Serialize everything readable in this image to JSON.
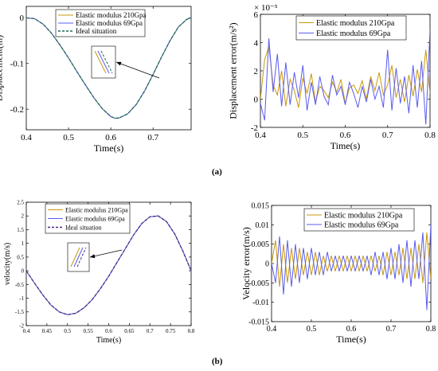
{
  "figure": {
    "caption_a": "(a)",
    "caption_b": "(b)"
  },
  "colors": {
    "e210": "#c8980a",
    "e69": "#5a5cf0",
    "ideal": "#1f6b55",
    "ideal_b": "#4a2a8a",
    "axis": "#000000"
  },
  "chart_data": [
    {
      "id": "a_left",
      "type": "line",
      "title": "",
      "xlabel": "Time(s)",
      "ylabel": "Displacement(m)",
      "xlim": [
        0.4,
        0.79
      ],
      "ylim": [
        -0.245,
        0.025
      ],
      "xticks": [
        0.4,
        0.5,
        0.6,
        0.7
      ],
      "xtick_labels": [
        "0.4",
        "0.5",
        "0.6",
        "0.7"
      ],
      "yticks": [
        0,
        -0.1,
        -0.2
      ],
      "ytick_labels": [
        "0",
        "-0.1",
        "-0.2"
      ],
      "legend_position": "top-left",
      "inset": "zoomed view of the three curves with an arrow pointing to the descending slope",
      "series": [
        {
          "name": "Elastic modulus 210Gpa",
          "color": "#c8980a",
          "style": "solid",
          "x": [
            0.4,
            0.42,
            0.44,
            0.46,
            0.48,
            0.5,
            0.52,
            0.54,
            0.56,
            0.58,
            0.6,
            0.61,
            0.62,
            0.64,
            0.66,
            0.68,
            0.7,
            0.72,
            0.74,
            0.76,
            0.78,
            0.79
          ],
          "values": [
            0,
            -0.002,
            -0.014,
            -0.034,
            -0.06,
            -0.088,
            -0.118,
            -0.147,
            -0.175,
            -0.199,
            -0.216,
            -0.22,
            -0.219,
            -0.21,
            -0.19,
            -0.16,
            -0.124,
            -0.086,
            -0.05,
            -0.02,
            -0.003,
            0
          ]
        },
        {
          "name": "Elastic modulus 69Gpa",
          "color": "#5a5cf0",
          "style": "solid",
          "x": [
            0.4,
            0.42,
            0.44,
            0.46,
            0.48,
            0.5,
            0.52,
            0.54,
            0.56,
            0.58,
            0.6,
            0.61,
            0.62,
            0.64,
            0.66,
            0.68,
            0.7,
            0.72,
            0.74,
            0.76,
            0.78,
            0.79
          ],
          "values": [
            0,
            -0.002,
            -0.014,
            -0.034,
            -0.06,
            -0.088,
            -0.118,
            -0.147,
            -0.175,
            -0.199,
            -0.216,
            -0.22,
            -0.219,
            -0.21,
            -0.19,
            -0.16,
            -0.124,
            -0.086,
            -0.05,
            -0.02,
            -0.003,
            0
          ]
        },
        {
          "name": "Ideal situation",
          "color": "#1f6b55",
          "style": "dashed",
          "x": [
            0.4,
            0.42,
            0.44,
            0.46,
            0.48,
            0.5,
            0.52,
            0.54,
            0.56,
            0.58,
            0.6,
            0.61,
            0.62,
            0.64,
            0.66,
            0.68,
            0.7,
            0.72,
            0.74,
            0.76,
            0.78,
            0.79
          ],
          "values": [
            0,
            -0.002,
            -0.014,
            -0.034,
            -0.06,
            -0.088,
            -0.118,
            -0.147,
            -0.175,
            -0.199,
            -0.216,
            -0.22,
            -0.219,
            -0.21,
            -0.19,
            -0.16,
            -0.124,
            -0.086,
            -0.05,
            -0.02,
            -0.003,
            0
          ]
        }
      ]
    },
    {
      "id": "a_right",
      "type": "line",
      "title": "",
      "xlabel": "Time(s)",
      "ylabel": "Displacement error(m/s²)",
      "exponent_label": "× 10⁻⁵",
      "xlim": [
        0.4,
        0.8
      ],
      "ylim": [
        -2,
        6
      ],
      "xticks": [
        0.4,
        0.5,
        0.6,
        0.7,
        0.8
      ],
      "xtick_labels": [
        "0.4",
        "0.5",
        "0.6",
        "0.7",
        "0.8"
      ],
      "yticks": [
        -2,
        0,
        2,
        4,
        6
      ],
      "ytick_labels": [
        "-2",
        "0",
        "2",
        "4",
        "6"
      ],
      "legend_position": "top-center",
      "series": [
        {
          "name": "Elastic modulus 210Gpa",
          "color": "#c8980a",
          "style": "solid",
          "x": [
            0.4,
            0.41,
            0.42,
            0.43,
            0.44,
            0.45,
            0.46,
            0.47,
            0.48,
            0.49,
            0.5,
            0.51,
            0.52,
            0.53,
            0.54,
            0.55,
            0.56,
            0.57,
            0.58,
            0.59,
            0.6,
            0.61,
            0.62,
            0.63,
            0.64,
            0.65,
            0.66,
            0.67,
            0.68,
            0.69,
            0.7,
            0.71,
            0.72,
            0.73,
            0.74,
            0.75,
            0.76,
            0.77,
            0.78,
            0.79,
            0.8
          ],
          "values": [
            0,
            2.8,
            3.7,
            1.0,
            0.3,
            2.0,
            -0.5,
            1.4,
            0.6,
            -0.6,
            1.5,
            0.4,
            1.8,
            -0.2,
            0.9,
            0.6,
            0.1,
            1.2,
            0.5,
            1.4,
            -0.3,
            0.8,
            1.0,
            0.4,
            1.3,
            0.0,
            1.6,
            0.6,
            1.9,
            0.3,
            1.0,
            2.4,
            0.1,
            1.4,
            -0.2,
            1.7,
            0.2,
            2.1,
            0.5,
            3.5,
            0.4
          ]
        },
        {
          "name": "Elastic modulus 69Gpa",
          "color": "#5a5cf0",
          "style": "solid",
          "x": [
            0.4,
            0.41,
            0.42,
            0.43,
            0.44,
            0.45,
            0.46,
            0.47,
            0.48,
            0.49,
            0.5,
            0.51,
            0.52,
            0.53,
            0.54,
            0.55,
            0.56,
            0.57,
            0.58,
            0.59,
            0.6,
            0.61,
            0.62,
            0.63,
            0.64,
            0.65,
            0.66,
            0.67,
            0.68,
            0.69,
            0.7,
            0.71,
            0.72,
            0.73,
            0.74,
            0.75,
            0.76,
            0.77,
            0.78,
            0.79,
            0.8
          ],
          "values": [
            -0.3,
            -1.5,
            4.3,
            0.5,
            3.2,
            -0.5,
            2.6,
            -0.4,
            1.9,
            0.1,
            2.4,
            -0.8,
            1.2,
            -0.4,
            1.6,
            0.2,
            -0.4,
            1.7,
            0.3,
            0.9,
            -0.4,
            1.2,
            0.4,
            -0.6,
            0.9,
            -0.2,
            1.4,
            0.0,
            0.9,
            -0.6,
            3.5,
            -0.8,
            2.2,
            -0.3,
            1.6,
            -1.0,
            2.4,
            -0.6,
            2.7,
            -1.8,
            4.9
          ]
        }
      ]
    },
    {
      "id": "b_left",
      "type": "line",
      "title": "",
      "xlabel": "Time(s)",
      "ylabel": "velocity(m/s)",
      "xlim": [
        0.4,
        0.8
      ],
      "ylim": [
        -2,
        2.5
      ],
      "xticks": [
        0.4,
        0.45,
        0.5,
        0.55,
        0.6,
        0.65,
        0.7,
        0.75,
        0.8
      ],
      "xtick_labels": [
        "0.4",
        "0.45",
        "0.5",
        "0.55",
        "0.6",
        "0.65",
        "0.7",
        "0.75",
        "0.8"
      ],
      "yticks": [
        -2,
        -1.5,
        -1,
        -0.5,
        0,
        0.5,
        1,
        1.5,
        2,
        2.5
      ],
      "ytick_labels": [
        "-2",
        "-1.5",
        "-1",
        "-0.5",
        "0",
        "0.5",
        "1",
        "1.5",
        "2",
        "2.5"
      ],
      "legend_position": "top-center",
      "inset": "zoomed view of the three curves with an arrow pointing to the ascending slope",
      "series": [
        {
          "name": "Elastic modulus 210Gpa",
          "color": "#c8980a",
          "style": "solid",
          "x": [
            0.4,
            0.42,
            0.44,
            0.46,
            0.48,
            0.5,
            0.52,
            0.54,
            0.56,
            0.58,
            0.6,
            0.62,
            0.64,
            0.66,
            0.68,
            0.7,
            0.72,
            0.74,
            0.76,
            0.78,
            0.8
          ],
          "values": [
            0,
            -0.45,
            -0.88,
            -1.25,
            -1.5,
            -1.6,
            -1.55,
            -1.35,
            -1.05,
            -0.65,
            -0.2,
            0.3,
            0.8,
            1.3,
            1.72,
            1.97,
            2.0,
            1.8,
            1.35,
            0.72,
            0.0
          ]
        },
        {
          "name": "Elastic modulus 69Gpa",
          "color": "#5a5cf0",
          "style": "solid",
          "x": [
            0.4,
            0.42,
            0.44,
            0.46,
            0.48,
            0.5,
            0.52,
            0.54,
            0.56,
            0.58,
            0.6,
            0.62,
            0.64,
            0.66,
            0.68,
            0.7,
            0.72,
            0.74,
            0.76,
            0.78,
            0.8
          ],
          "values": [
            0,
            -0.45,
            -0.88,
            -1.25,
            -1.5,
            -1.6,
            -1.55,
            -1.35,
            -1.05,
            -0.65,
            -0.2,
            0.3,
            0.8,
            1.3,
            1.72,
            1.97,
            2.0,
            1.8,
            1.35,
            0.72,
            0.0
          ]
        },
        {
          "name": "Ideal situation",
          "color": "#4a2a8a",
          "style": "dashed",
          "x": [
            0.4,
            0.42,
            0.44,
            0.46,
            0.48,
            0.5,
            0.52,
            0.54,
            0.56,
            0.58,
            0.6,
            0.62,
            0.64,
            0.66,
            0.68,
            0.7,
            0.72,
            0.74,
            0.76,
            0.78,
            0.8
          ],
          "values": [
            0,
            -0.45,
            -0.88,
            -1.25,
            -1.5,
            -1.6,
            -1.55,
            -1.35,
            -1.05,
            -0.65,
            -0.2,
            0.3,
            0.8,
            1.3,
            1.72,
            1.97,
            2.0,
            1.8,
            1.35,
            0.72,
            0.0
          ]
        }
      ]
    },
    {
      "id": "b_right",
      "type": "line",
      "title": "",
      "xlabel": "Time(s)",
      "ylabel": "Velocity error(m/s)",
      "xlim": [
        0.4,
        0.8
      ],
      "ylim": [
        -0.015,
        0.015
      ],
      "xticks": [
        0.4,
        0.5,
        0.6,
        0.7,
        0.8
      ],
      "xtick_labels": [
        "0.4",
        "0.5",
        "0.6",
        "0.7",
        "0.8"
      ],
      "yticks": [
        -0.015,
        -0.01,
        -0.005,
        0,
        0.005,
        0.01,
        0.015
      ],
      "ytick_labels": [
        "-0.015",
        "-0.01",
        "-0.005",
        "0",
        "0.005",
        "0.01",
        "0.015"
      ],
      "legend_position": "top-center",
      "series": [
        {
          "name": "Elastic modulus 210Gpa",
          "color": "#c8980a",
          "style": "solid",
          "x": [
            0.4,
            0.41,
            0.42,
            0.43,
            0.44,
            0.45,
            0.46,
            0.47,
            0.48,
            0.49,
            0.5,
            0.51,
            0.52,
            0.53,
            0.54,
            0.55,
            0.56,
            0.57,
            0.58,
            0.59,
            0.6,
            0.61,
            0.62,
            0.63,
            0.64,
            0.65,
            0.66,
            0.67,
            0.68,
            0.69,
            0.7,
            0.71,
            0.72,
            0.73,
            0.74,
            0.75,
            0.76,
            0.77,
            0.78,
            0.79,
            0.8
          ],
          "values": [
            0,
            0.006,
            -0.006,
            0.005,
            -0.005,
            0.004,
            -0.004,
            0.004,
            -0.003,
            0.003,
            -0.003,
            0.003,
            -0.003,
            0.002,
            -0.002,
            0.002,
            -0.002,
            0.002,
            -0.002,
            0.002,
            -0.002,
            0.002,
            -0.002,
            0.002,
            -0.002,
            0.002,
            -0.002,
            0.002,
            -0.003,
            0.003,
            -0.003,
            0.003,
            -0.003,
            0.004,
            -0.004,
            0.004,
            -0.004,
            0.005,
            -0.005,
            0.008,
            -0.004
          ]
        },
        {
          "name": "Elastic modulus 69Gpa",
          "color": "#5a5cf0",
          "style": "solid",
          "x": [
            0.4,
            0.41,
            0.42,
            0.43,
            0.44,
            0.45,
            0.46,
            0.47,
            0.48,
            0.49,
            0.5,
            0.51,
            0.52,
            0.53,
            0.54,
            0.55,
            0.56,
            0.57,
            0.58,
            0.59,
            0.6,
            0.61,
            0.62,
            0.63,
            0.64,
            0.65,
            0.66,
            0.67,
            0.68,
            0.69,
            0.7,
            0.71,
            0.72,
            0.73,
            0.74,
            0.75,
            0.76,
            0.77,
            0.78,
            0.79,
            0.8
          ],
          "values": [
            0,
            -0.005,
            0.007,
            -0.008,
            0.006,
            -0.006,
            0.005,
            -0.005,
            0.004,
            -0.004,
            0.004,
            -0.003,
            0.003,
            -0.003,
            0.003,
            -0.002,
            0.002,
            -0.002,
            0.002,
            -0.002,
            0.002,
            -0.002,
            0.002,
            -0.002,
            0.002,
            -0.003,
            0.003,
            -0.003,
            0.003,
            -0.004,
            0.004,
            -0.004,
            0.005,
            -0.005,
            0.006,
            -0.006,
            0.006,
            -0.004,
            0.008,
            -0.012,
            0.01
          ]
        }
      ]
    }
  ]
}
